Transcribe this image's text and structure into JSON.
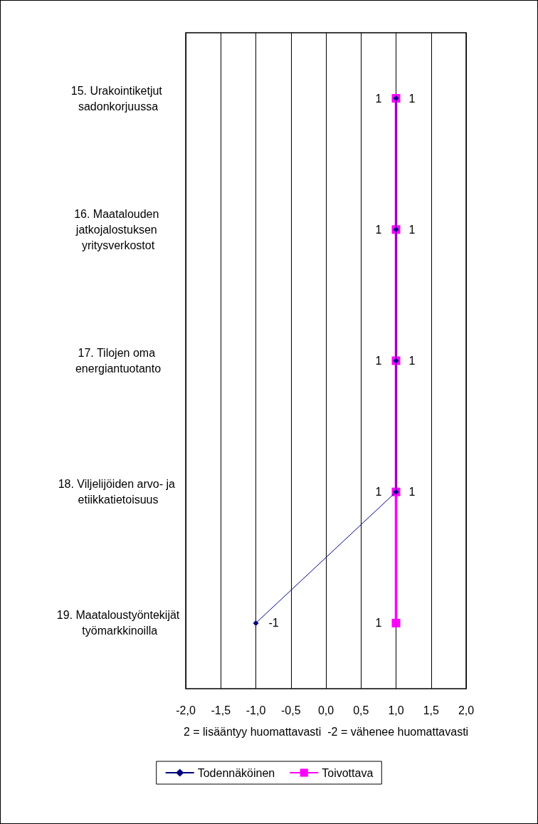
{
  "chart_data": {
    "type": "line",
    "orientation": "horizontal",
    "xlabel": "2 = lisääntyy huomattavasti  -2 = vähenee huomattavasti",
    "categories": [
      "15. Urakointiketjut sadonkorjuussa",
      "16. Maatalouden jatkojalostuksen yritysverkostot",
      "17. Tilojen oma energiantuotanto",
      "18. Viljelijöiden arvo- ja etiikkatietoisuus",
      "19. Maataloustyöntekijät työmarkkinoilla"
    ],
    "series": [
      {
        "name": "Todennäköinen",
        "color": "#000080",
        "marker": "diamond",
        "values": [
          1,
          1,
          1,
          1,
          -1
        ]
      },
      {
        "name": "Toivottava",
        "color": "#ff00ff",
        "marker": "square",
        "values": [
          1,
          1,
          1,
          1,
          1
        ]
      }
    ],
    "xlim": [
      -2,
      2
    ],
    "xticks": [
      {
        "value": -2,
        "label": "-2,0"
      },
      {
        "value": -1.5,
        "label": "-1,5"
      },
      {
        "value": -1,
        "label": "-1,0"
      },
      {
        "value": -0.5,
        "label": "-0,5"
      },
      {
        "value": 0,
        "label": "0,0"
      },
      {
        "value": 0.5,
        "label": "0,5"
      },
      {
        "value": 1,
        "label": "1,0"
      },
      {
        "value": 1.5,
        "label": "1,5"
      },
      {
        "value": 2,
        "label": "2,0"
      }
    ],
    "grid": "x",
    "legend": "bottom",
    "data_labels": true
  }
}
